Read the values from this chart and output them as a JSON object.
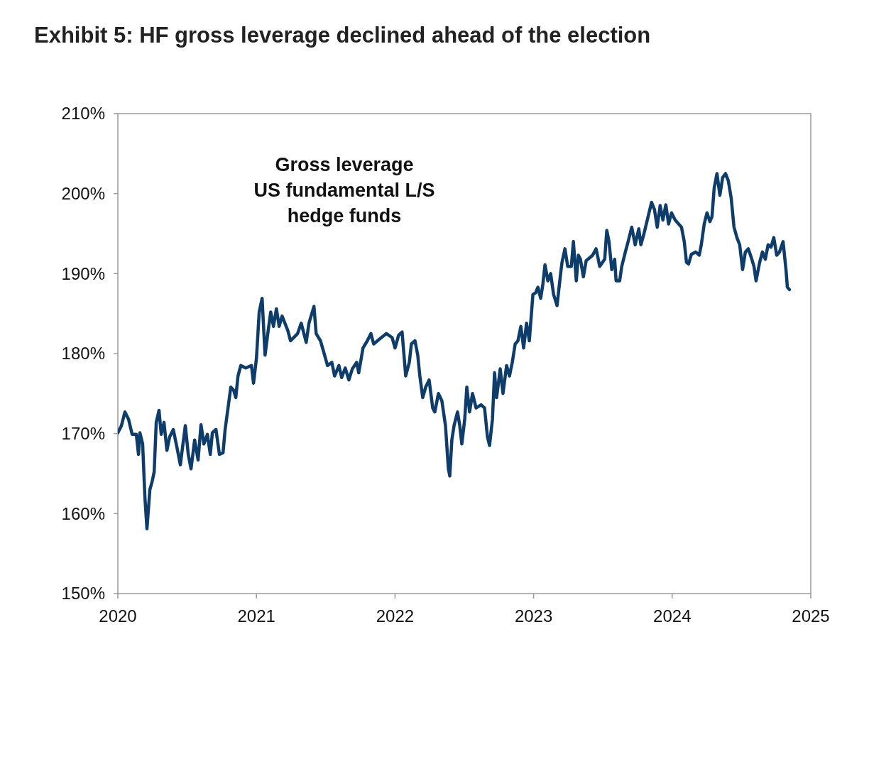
{
  "chart_data": {
    "type": "line",
    "title": "Exhibit 5: HF gross leverage declined ahead of the election",
    "annotations": [
      "Gross leverage\nUS fundamental L/S\nhedge funds"
    ],
    "xlim": [
      2020,
      2025
    ],
    "xticks": [
      2020,
      2021,
      2022,
      2023,
      2024,
      2025
    ],
    "ylim": [
      150,
      210
    ],
    "yticks": [
      {
        "value": 150,
        "label": "150%"
      },
      {
        "value": 160,
        "label": "160%"
      },
      {
        "value": 170,
        "label": "170%"
      },
      {
        "value": 180,
        "label": "180%"
      },
      {
        "value": 190,
        "label": "190%"
      },
      {
        "value": 200,
        "label": "200%"
      },
      {
        "value": 210,
        "label": "210%"
      }
    ],
    "grid": false,
    "marker": "none",
    "line_style": "solid",
    "series": [
      {
        "color": "#0f3d6b",
        "x": [
          2020.0,
          2020.026,
          2020.051,
          2020.077,
          2020.103,
          2020.133,
          2020.149,
          2020.159,
          2020.179,
          2020.195,
          2020.21,
          2020.231,
          2020.246,
          2020.262,
          2020.277,
          2020.297,
          2020.313,
          2020.333,
          2020.354,
          2020.374,
          2020.4,
          2020.426,
          2020.451,
          2020.467,
          2020.487,
          2020.508,
          2020.528,
          2020.554,
          2020.579,
          2020.6,
          2020.621,
          2020.646,
          2020.667,
          2020.682,
          2020.708,
          2020.733,
          2020.759,
          2020.774,
          2020.795,
          2020.815,
          2020.836,
          2020.851,
          2020.867,
          2020.887,
          2020.923,
          2020.964,
          2020.979,
          2021.0,
          2021.02,
          2021.041,
          2021.062,
          2021.082,
          2021.103,
          2021.123,
          2021.144,
          2021.164,
          2021.185,
          2021.226,
          2021.246,
          2021.297,
          2021.323,
          2021.359,
          2021.379,
          2021.415,
          2021.431,
          2021.462,
          2021.492,
          2021.513,
          2021.544,
          2021.564,
          2021.595,
          2021.615,
          2021.641,
          2021.667,
          2021.692,
          2021.723,
          2021.738,
          2021.769,
          2021.8,
          2021.826,
          2021.846,
          2021.887,
          2021.938,
          2021.979,
          2022.0,
          2022.026,
          2022.051,
          2022.077,
          2022.103,
          2022.118,
          2022.144,
          2022.164,
          2022.179,
          2022.2,
          2022.221,
          2022.246,
          2022.272,
          2022.287,
          2022.313,
          2022.338,
          2022.364,
          2022.385,
          2022.395,
          2022.41,
          2022.426,
          2022.451,
          2022.467,
          2022.482,
          2022.503,
          2022.518,
          2022.538,
          2022.559,
          2022.585,
          2022.621,
          2022.646,
          2022.667,
          2022.682,
          2022.703,
          2022.718,
          2022.733,
          2022.759,
          2022.779,
          2022.805,
          2022.826,
          2022.846,
          2022.867,
          2022.887,
          2022.908,
          2022.928,
          2022.949,
          2022.969,
          2022.995,
          2023.015,
          2023.031,
          2023.051,
          2023.067,
          2023.082,
          2023.103,
          2023.123,
          2023.144,
          2023.169,
          2023.195,
          2023.205,
          2023.226,
          2023.246,
          2023.272,
          2023.287,
          2023.308,
          2023.323,
          2023.338,
          2023.359,
          2023.379,
          2023.426,
          2023.451,
          2023.477,
          2023.513,
          2023.528,
          2023.544,
          2023.564,
          2023.585,
          2023.595,
          2023.621,
          2023.636,
          2023.662,
          2023.682,
          2023.708,
          2023.733,
          2023.759,
          2023.774,
          2023.795,
          2023.826,
          2023.851,
          2023.872,
          2023.892,
          2023.913,
          2023.933,
          2023.954,
          2023.974,
          2023.995,
          2024.021,
          2024.067,
          2024.087,
          2024.103,
          2024.118,
          2024.138,
          2024.169,
          2024.195,
          2024.21,
          2024.231,
          2024.251,
          2024.272,
          2024.287,
          2024.303,
          2024.323,
          2024.344,
          2024.364,
          2024.385,
          2024.405,
          2024.426,
          2024.446,
          2024.467,
          2024.487,
          2024.508,
          2024.528,
          2024.549,
          2024.569,
          2024.59,
          2024.605,
          2024.631,
          2024.651,
          2024.672,
          2024.692,
          2024.713,
          2024.733,
          2024.754,
          2024.774,
          2024.8,
          2024.821,
          2024.831,
          2024.846
        ],
        "values": [
          170.1,
          171.0,
          172.7,
          171.8,
          169.9,
          169.9,
          167.4,
          170.1,
          168.7,
          162.1,
          158.1,
          163.0,
          163.9,
          165.2,
          171.4,
          172.9,
          169.9,
          171.4,
          167.9,
          169.6,
          170.5,
          168.3,
          166.1,
          168.3,
          171.0,
          167.4,
          165.6,
          169.2,
          166.7,
          171.1,
          168.7,
          169.9,
          167.4,
          170.1,
          170.5,
          167.4,
          167.6,
          170.5,
          173.2,
          175.8,
          175.4,
          174.5,
          177.2,
          178.5,
          178.2,
          178.5,
          176.3,
          179.4,
          185.2,
          186.9,
          179.8,
          182.5,
          185.2,
          183.4,
          185.6,
          183.4,
          184.7,
          182.9,
          181.6,
          182.5,
          183.8,
          181.4,
          183.8,
          185.9,
          182.5,
          181.6,
          179.8,
          178.5,
          178.9,
          177.2,
          178.5,
          177.0,
          178.2,
          176.7,
          178.1,
          178.9,
          177.6,
          180.7,
          181.6,
          182.5,
          181.2,
          181.8,
          182.5,
          182.0,
          180.7,
          182.3,
          182.7,
          177.2,
          178.9,
          181.2,
          181.6,
          179.8,
          177.2,
          174.5,
          175.8,
          176.7,
          173.2,
          172.7,
          175.0,
          174.1,
          171.0,
          165.6,
          164.7,
          169.2,
          171.0,
          172.7,
          171.0,
          168.7,
          171.8,
          175.8,
          172.7,
          175.0,
          173.2,
          173.6,
          173.2,
          169.6,
          168.5,
          171.8,
          177.6,
          174.5,
          178.1,
          175.0,
          178.5,
          177.2,
          178.9,
          181.2,
          181.6,
          183.4,
          180.7,
          183.8,
          181.6,
          187.4,
          187.6,
          188.3,
          186.9,
          188.7,
          191.1,
          189.1,
          190.0,
          187.4,
          186.0,
          190.0,
          191.4,
          193.1,
          190.9,
          190.9,
          194.0,
          189.1,
          192.3,
          191.8,
          189.6,
          191.6,
          192.3,
          193.1,
          190.9,
          191.8,
          195.4,
          194.0,
          190.5,
          191.8,
          189.1,
          189.1,
          190.9,
          192.7,
          194.0,
          195.8,
          193.6,
          195.6,
          193.6,
          194.9,
          197.1,
          198.9,
          198.0,
          195.8,
          198.5,
          196.7,
          198.6,
          196.2,
          197.6,
          196.7,
          195.8,
          194.0,
          191.4,
          191.2,
          192.4,
          192.7,
          192.3,
          193.6,
          196.2,
          197.6,
          196.5,
          197.1,
          200.7,
          202.5,
          199.8,
          202.0,
          202.5,
          201.6,
          199.4,
          195.8,
          194.5,
          193.6,
          190.5,
          192.7,
          193.1,
          192.1,
          190.9,
          189.1,
          191.4,
          192.7,
          191.8,
          193.6,
          193.3,
          194.5,
          192.3,
          192.7,
          194.0,
          190.5,
          188.3,
          188.0
        ]
      }
    ]
  }
}
